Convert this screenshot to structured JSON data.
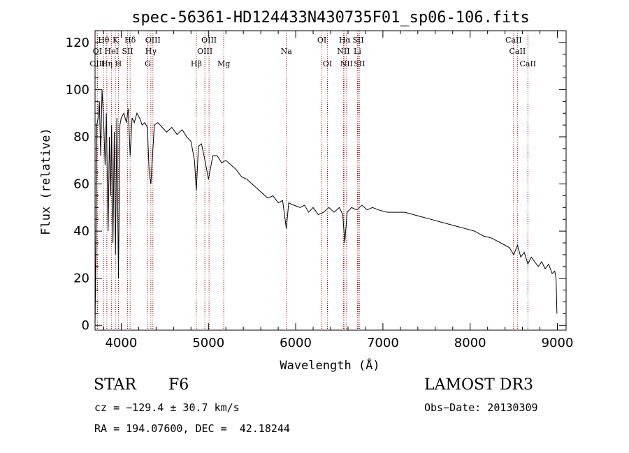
{
  "chart_data": {
    "type": "line",
    "title": "spec-56361-HD124433N430735F01_sp06-106.fits",
    "xlabel": "Wavelength (Å)",
    "ylabel": "Flux (relative)",
    "xlim": [
      3700,
      9100
    ],
    "ylim": [
      -2,
      125
    ],
    "xticks": [
      4000,
      5000,
      6000,
      7000,
      8000,
      9000
    ],
    "yticks": [
      0,
      20,
      40,
      60,
      80,
      100,
      120
    ],
    "series": [
      {
        "name": "flux",
        "x": [
          3700,
          3710,
          3720,
          3735,
          3750,
          3765,
          3780,
          3800,
          3815,
          3830,
          3850,
          3865,
          3880,
          3890,
          3905,
          3920,
          3934,
          3950,
          3968,
          3985,
          4000,
          4030,
          4060,
          4080,
          4102,
          4125,
          4150,
          4180,
          4210,
          4240,
          4270,
          4300,
          4320,
          4340,
          4355,
          4380,
          4420,
          4470,
          4520,
          4580,
          4640,
          4700,
          4750,
          4800,
          4840,
          4861,
          4885,
          4920,
          4960,
          5000,
          5050,
          5100,
          5150,
          5200,
          5260,
          5320,
          5380,
          5440,
          5500,
          5560,
          5620,
          5680,
          5740,
          5800,
          5850,
          5893,
          5920,
          5980,
          6050,
          6100,
          6150,
          6200,
          6260,
          6320,
          6380,
          6440,
          6500,
          6540,
          6563,
          6590,
          6640,
          6700,
          6760,
          6820,
          6880,
          6950,
          7050,
          7150,
          7250,
          7350,
          7450,
          7550,
          7650,
          7750,
          7850,
          7950,
          8050,
          8150,
          8250,
          8350,
          8450,
          8500,
          8542,
          8580,
          8620,
          8662,
          8700,
          8740,
          8780,
          8820,
          8860,
          8900,
          8940,
          8970,
          8985,
          8995
        ],
        "y": [
          0,
          30,
          85,
          88,
          95,
          72,
          100,
          85,
          68,
          90,
          40,
          80,
          55,
          85,
          35,
          82,
          30,
          88,
          20,
          85,
          88,
          90,
          86,
          92,
          72,
          88,
          86,
          90,
          88,
          85,
          86,
          84,
          65,
          60,
          70,
          85,
          86,
          84,
          82,
          84,
          81,
          83,
          80,
          78,
          70,
          57,
          76,
          77,
          70,
          62,
          72,
          72,
          69,
          70,
          68,
          66,
          63,
          62,
          60,
          58,
          56,
          54,
          55,
          52,
          53,
          41,
          52,
          51,
          50,
          51,
          48,
          50,
          47,
          48,
          50,
          48,
          50,
          47,
          35,
          48,
          50,
          49,
          51,
          49,
          50,
          49,
          48,
          48,
          48,
          47,
          46,
          45,
          44,
          43,
          42,
          41,
          40,
          38,
          37,
          35,
          33,
          30,
          34,
          29,
          31,
          26,
          29,
          27,
          25,
          27,
          24,
          26,
          22,
          23,
          20,
          5
        ]
      }
    ],
    "spectral_lines": [
      {
        "label": "Hθ",
        "wl": 3798,
        "row": 0
      },
      {
        "label": "K",
        "wl": 3934,
        "row": 0
      },
      {
        "label": "Hδ",
        "wl": 4102,
        "row": 0
      },
      {
        "label": "OIII",
        "wl": 4363,
        "row": 0
      },
      {
        "label": "OIII",
        "wl": 5007,
        "row": 0
      },
      {
        "label": "OI",
        "wl": 6300,
        "row": 0
      },
      {
        "label": "Hα",
        "wl": 6563,
        "row": 0
      },
      {
        "label": "SII",
        "wl": 6716,
        "row": 0
      },
      {
        "label": "CaII",
        "wl": 8498,
        "row": 0
      },
      {
        "label": "OI",
        "wl": 3727,
        "row": 1
      },
      {
        "label": "HeI",
        "wl": 3889,
        "row": 1
      },
      {
        "label": "SII",
        "wl": 4072,
        "row": 1
      },
      {
        "label": "Hγ",
        "wl": 4340,
        "row": 1
      },
      {
        "label": "OIII",
        "wl": 4959,
        "row": 1
      },
      {
        "label": "Na",
        "wl": 5893,
        "row": 1
      },
      {
        "label": "NII",
        "wl": 6548,
        "row": 1
      },
      {
        "label": "Li",
        "wl": 6708,
        "row": 1
      },
      {
        "label": "CaII",
        "wl": 8542,
        "row": 1
      },
      {
        "label": "OIII",
        "wl": 3727,
        "row": 2
      },
      {
        "label": "Hη",
        "wl": 3835,
        "row": 2
      },
      {
        "label": "H",
        "wl": 3968,
        "row": 2
      },
      {
        "label": "G",
        "wl": 4304,
        "row": 2
      },
      {
        "label": "Hβ",
        "wl": 4861,
        "row": 2
      },
      {
        "label": "Mg",
        "wl": 5175,
        "row": 2
      },
      {
        "label": "OI",
        "wl": 6364,
        "row": 2
      },
      {
        "label": "NII",
        "wl": 6583,
        "row": 2
      },
      {
        "label": "SII",
        "wl": 6731,
        "row": 2
      },
      {
        "label": "CaII",
        "wl": 8662,
        "row": 2
      }
    ],
    "line_color": "#aa0000"
  },
  "info": {
    "object_class": "STAR",
    "subclass": "F6",
    "survey": "LAMOST DR3",
    "redshift": "cz = −129.4 ± 30.7 km/s",
    "obs_date": "Obs−Date: 20130309",
    "coords": "RA = 194.07600, DEC =  42.18244"
  }
}
